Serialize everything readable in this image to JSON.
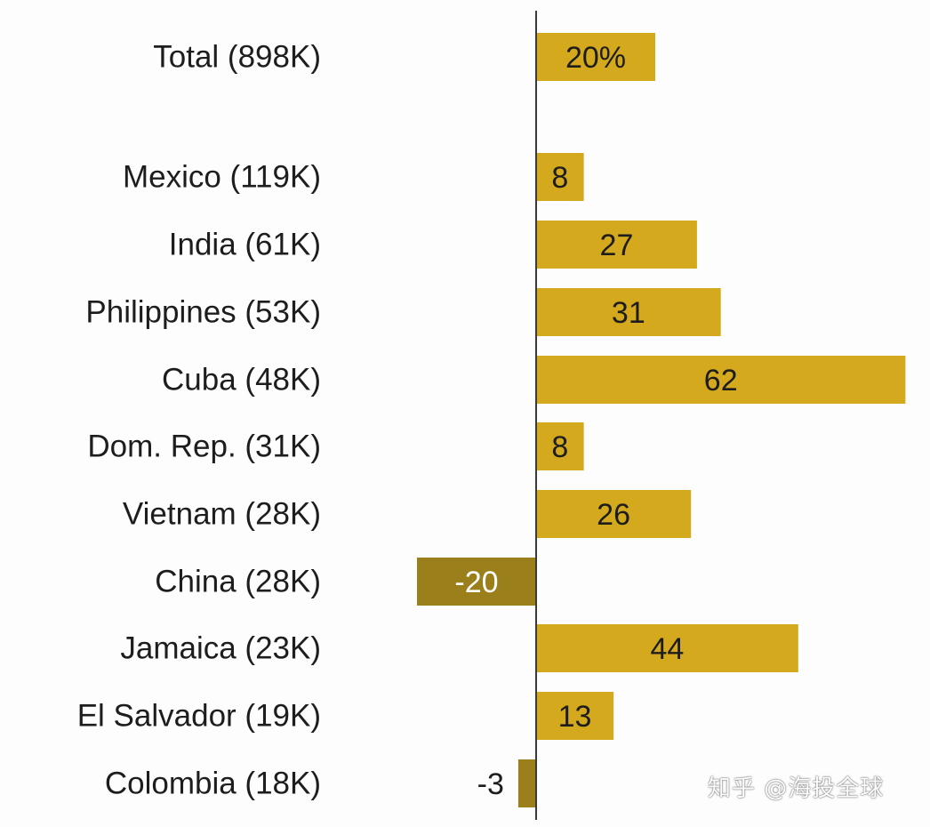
{
  "chart_data": {
    "type": "bar",
    "orientation": "horizontal",
    "categories": [
      "Total (898K)",
      "Mexico (119K)",
      "India (61K)",
      "Philippines (53K)",
      "Cuba (48K)",
      "Dom. Rep. (31K)",
      "Vietnam (28K)",
      "China (28K)",
      "Jamaica (23K)",
      "El Salvador (19K)",
      "Colombia (18K)"
    ],
    "values": [
      20,
      8,
      27,
      31,
      62,
      8,
      26,
      -20,
      44,
      13,
      -3
    ],
    "value_labels": [
      "20%",
      "8",
      "27",
      "31",
      "62",
      "8",
      "26",
      "-20",
      "44",
      "13",
      "-3"
    ],
    "title": "",
    "xlabel": "",
    "ylabel": "",
    "grid": false,
    "legend": "none",
    "colors": {
      "positive": "#d4a91d",
      "negative": "#9a7f1a",
      "axis": "#3a3a3a"
    }
  },
  "watermark": "知乎 @海投全球"
}
